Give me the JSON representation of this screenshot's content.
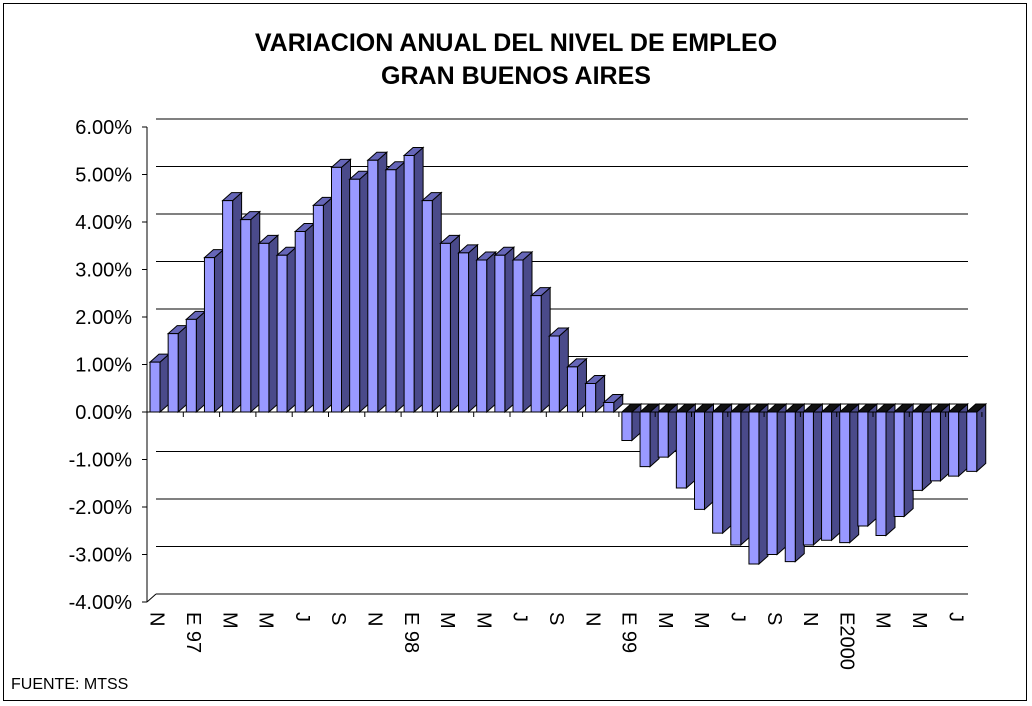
{
  "chart_data": {
    "type": "bar",
    "title": "VARIACION ANUAL DEL NIVEL DE EMPLEO",
    "subtitle": "GRAN BUENOS AIRES",
    "source": "FUENTE: MTSS",
    "ylim": [
      -4,
      6
    ],
    "y_ticks": [
      "6.00%",
      "5.00%",
      "4.00%",
      "3.00%",
      "2.00%",
      "1.00%",
      "0.00%",
      "-1.00%",
      "-2.00%",
      "-3.00%",
      "-4.00%"
    ],
    "x_tick_labels": [
      "N",
      "E 97",
      "M",
      "M",
      "J",
      "S",
      "N",
      "E 98",
      "M",
      "M",
      "J",
      "S",
      "N",
      "E 99",
      "M",
      "M",
      "J",
      "S",
      "N",
      "E2000",
      "M",
      "M",
      "J"
    ],
    "grid": "horizontal",
    "colors": {
      "face": "#9999ff",
      "side": "#4a4a8a",
      "top": "#6666b8",
      "zero_face": "#000000"
    },
    "values": [
      1.05,
      1.65,
      1.95,
      3.25,
      4.45,
      4.05,
      3.55,
      3.3,
      3.8,
      4.35,
      5.15,
      4.9,
      5.3,
      5.1,
      5.4,
      4.45,
      3.55,
      3.35,
      3.2,
      3.3,
      3.2,
      2.45,
      1.6,
      0.95,
      0.6,
      0.2,
      -0.6,
      -1.15,
      -0.95,
      -1.6,
      -2.05,
      -2.55,
      -2.8,
      -3.2,
      -3.0,
      -3.15,
      -2.8,
      -2.7,
      -2.75,
      -2.4,
      -2.6,
      -2.2,
      -1.65,
      -1.45,
      -1.35,
      -1.25
    ]
  }
}
